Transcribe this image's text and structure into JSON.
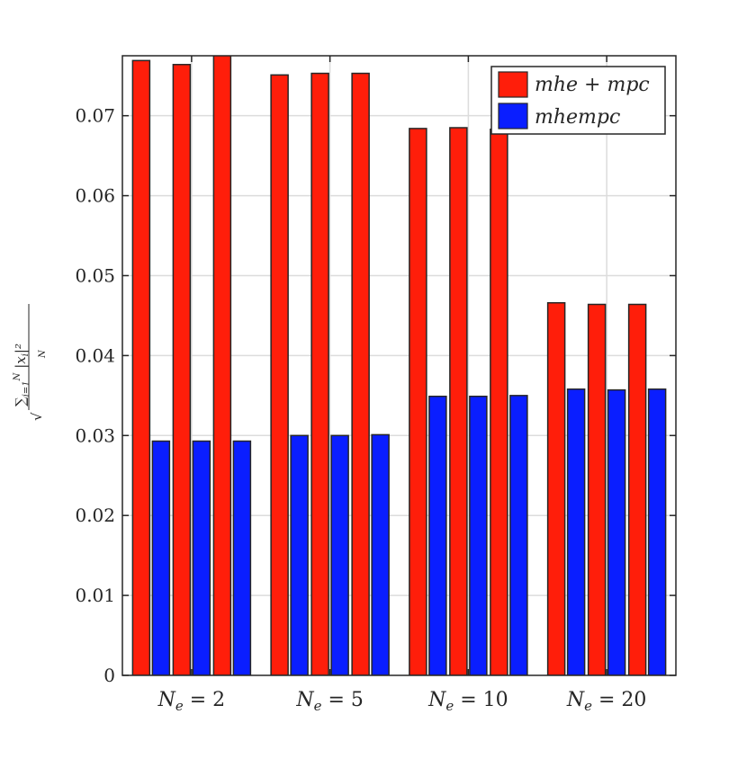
{
  "chart_data": {
    "type": "bar",
    "title": "",
    "xlabel": "",
    "ylabel": "√(∑ᵢ₌₁ᴺ |xᵢ|² / N)",
    "categories": [
      "N_e = 2",
      "N_e = 5",
      "N_e = 10",
      "N_e = 20"
    ],
    "category_parts": [
      {
        "sym": "N",
        "sub": "e",
        "rest": " = 2"
      },
      {
        "sym": "N",
        "sub": "e",
        "rest": " = 5"
      },
      {
        "sym": "N",
        "sub": "e",
        "rest": " = 10"
      },
      {
        "sym": "N",
        "sub": "e",
        "rest": " = 20"
      }
    ],
    "ylim": [
      0,
      0.0775
    ],
    "yticks": [
      0,
      0.01,
      0.02,
      0.03,
      0.04,
      0.05,
      0.06,
      0.07
    ],
    "ytick_labels": [
      "0",
      "0.01",
      "0.02",
      "0.03",
      "0.04",
      "0.05",
      "0.06",
      "0.07"
    ],
    "grid": true,
    "legend_position": "top-right",
    "series": [
      {
        "name": "mhe + mpc",
        "color": "#ff1e0a",
        "values": [
          [
            0.0769,
            0.0764,
            0.0778
          ],
          [
            0.0751,
            0.0753,
            0.0753
          ],
          [
            0.0684,
            0.0685,
            0.0683
          ],
          [
            0.0466,
            0.0464,
            0.0464
          ]
        ]
      },
      {
        "name": "mhempc",
        "color": "#0a1eff",
        "values": [
          [
            0.0293,
            0.0293,
            0.0293
          ],
          [
            0.03,
            0.03,
            0.0301
          ],
          [
            0.0349,
            0.0349,
            0.035
          ],
          [
            0.0358,
            0.0357,
            0.0358
          ]
        ]
      }
    ]
  }
}
